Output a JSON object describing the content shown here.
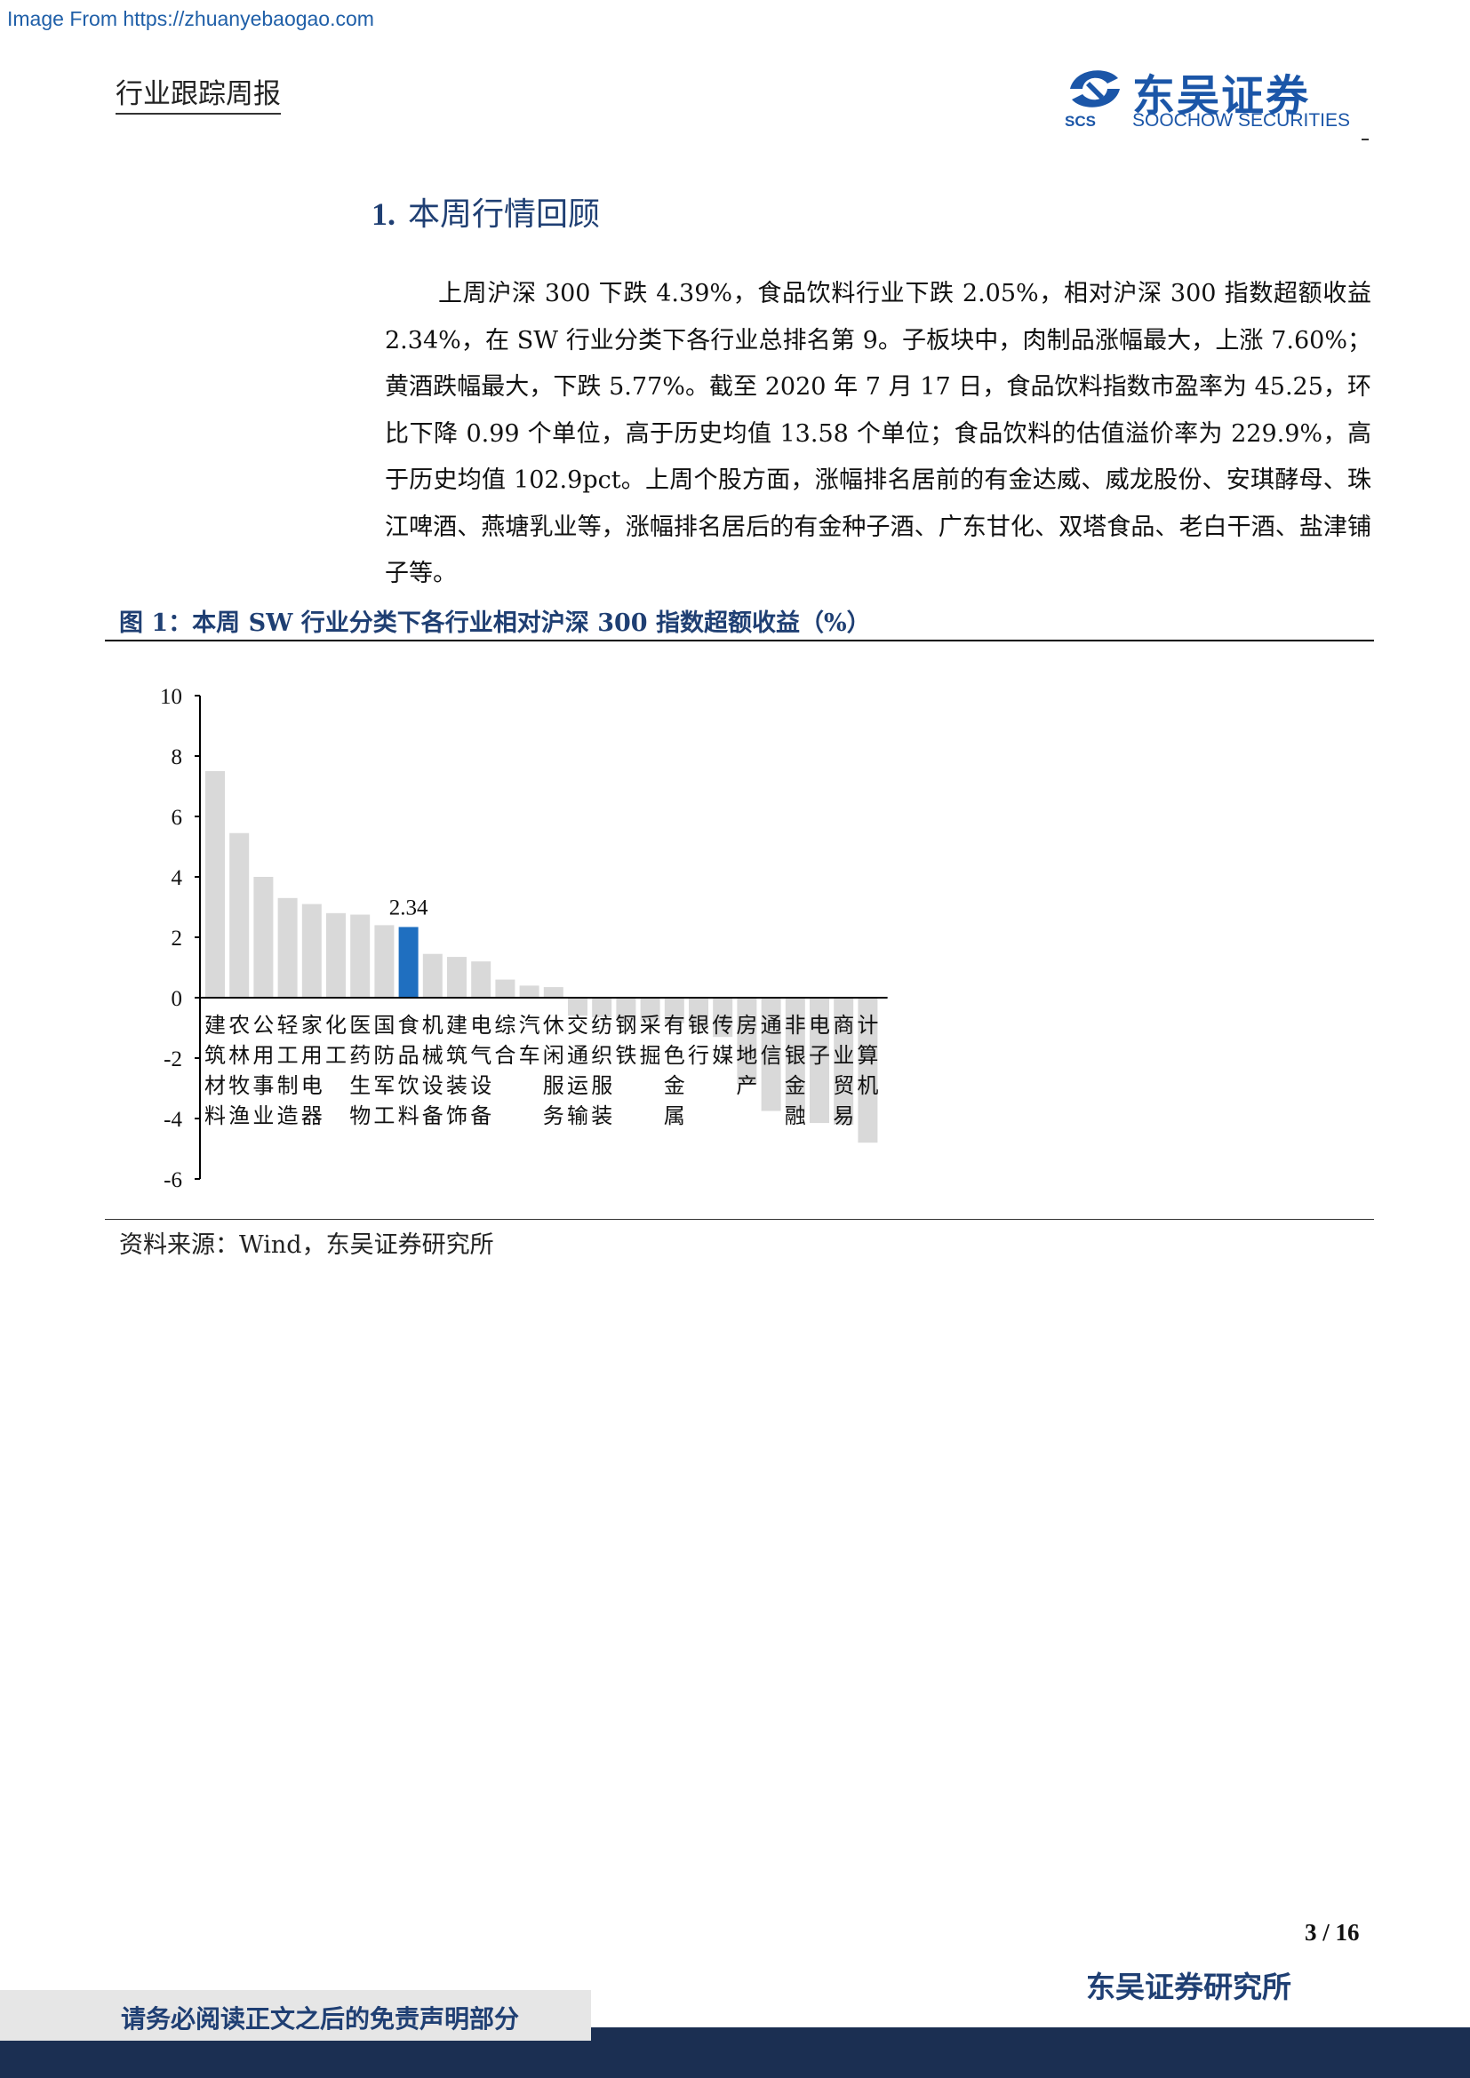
{
  "watermark": "Image From https://zhuanyebaogao.com",
  "header": {
    "running_title": "行业跟踪周报",
    "logo_name": "东吴证券",
    "logo_abbr": "SCS",
    "logo_en": "SOOCHOW SECURITIES",
    "brand_color": "#1b56a8"
  },
  "section": {
    "number": "1.",
    "title": "本周行情回顾"
  },
  "body_paragraph": "上周沪深 300 下跌 4.39%，食品饮料行业下跌 2.05%，相对沪深 300 指数超额收益 2.34%，在 SW 行业分类下各行业总排名第 9。子板块中，肉制品涨幅最大，上涨 7.60%；黄酒跌幅最大，下跌 5.77%。截至 2020 年 7 月 17 日，食品饮料指数市盈率为 45.25，环比下降 0.99 个单位，高于历史均值 13.58 个单位；食品饮料的估值溢价率为 229.9%，高于历史均值 102.9pct。上周个股方面，涨幅排名居前的有金达威、威龙股份、安琪酵母、珠江啤酒、燕塘乳业等，涨幅排名居后的有金种子酒、广东甘化、双塔食品、老白干酒、盐津铺子等。",
  "figure": {
    "title": "图 1：本周 SW 行业分类下各行业相对沪深 300 指数超额收益（%）",
    "source": "资料来源：Wind，东吴证券研究所"
  },
  "chart_data": {
    "type": "bar",
    "title": "",
    "xlabel": "",
    "ylabel": "",
    "ylim": [
      -6,
      10
    ],
    "yticks": [
      10,
      8,
      6,
      4,
      2,
      0,
      -2,
      -4,
      -6
    ],
    "grid": false,
    "legend": "none",
    "bar_color": "#d9d9d9",
    "highlight_color": "#1f6fc0",
    "highlight_index": 8,
    "highlight_label": "2.34",
    "categories": [
      "建筑材料",
      "农林牧渔",
      "公用事业",
      "轻工制造",
      "家用电器",
      "化工",
      "医药生物",
      "国防军工",
      "食品饮料",
      "机械设备",
      "建筑装饰",
      "电气设备",
      "综合",
      "汽车",
      "休闲服务",
      "交通运输",
      "纺织服装",
      "钢铁",
      "采掘",
      "有色金属",
      "银行",
      "传媒",
      "房地产",
      "通信",
      "非银金融",
      "电子",
      "商业贸易",
      "计算机"
    ],
    "values": [
      7.5,
      5.45,
      4.0,
      3.3,
      3.1,
      2.8,
      2.75,
      2.4,
      2.34,
      1.45,
      1.35,
      1.2,
      0.6,
      0.4,
      0.35,
      -0.6,
      -0.65,
      -0.75,
      -0.8,
      -0.85,
      -1.05,
      -1.3,
      -2.85,
      -3.75,
      -3.8,
      -4.15,
      -4.2,
      -4.8
    ]
  },
  "footer": {
    "page_number": "3 / 16",
    "org": "东吴证券研究所",
    "disclaimer": "请务必阅读正文之后的免责声明部分",
    "band_color": "#1b2f52"
  }
}
